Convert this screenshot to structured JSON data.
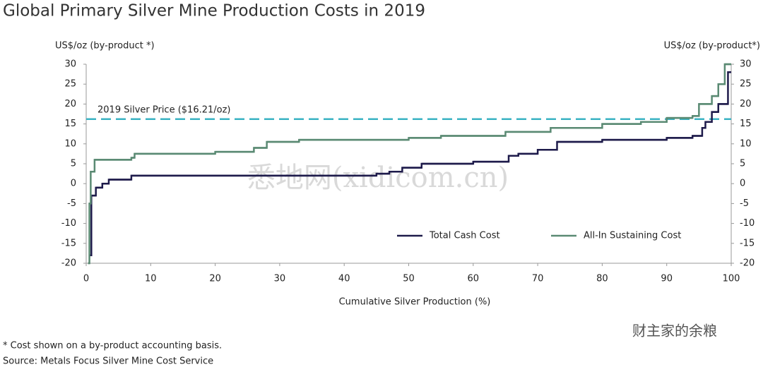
{
  "chart_data": {
    "type": "step",
    "title": "Global Primary Silver Mine Production Costs in 2019",
    "ylabel": "US$/oz (by-product *)",
    "y2label": "US$/oz (by-product*)",
    "xlabel": "Cumulative Silver Production (%)",
    "xlim": [
      0,
      100
    ],
    "xticks": [
      0,
      10,
      20,
      30,
      40,
      50,
      60,
      70,
      80,
      90,
      100
    ],
    "ylim": [
      -20,
      30
    ],
    "yticks": [
      30,
      25,
      20,
      15,
      10,
      5,
      0,
      -5,
      -10,
      -15,
      -20
    ],
    "y2lim": [
      -20,
      30
    ],
    "y2ticks": [
      30,
      25,
      20,
      15,
      10,
      5,
      0,
      -5,
      -10,
      -15,
      -20
    ],
    "legend": "lower right",
    "reference_line": {
      "value": 16.21,
      "label": "2019 Silver Price ($16.21/oz)",
      "color": "#3bb3c3"
    },
    "series": [
      {
        "name": "Total Cash Cost",
        "color": "#1e1b4b",
        "x": [
          0.6,
          0.8,
          1.5,
          2.5,
          3.5,
          7,
          40,
          45,
          47,
          49,
          52,
          60,
          65.5,
          67,
          70,
          73,
          80,
          90,
          94,
          95.5,
          96,
          97,
          98,
          99.5,
          100
        ],
        "values": [
          -18,
          -3,
          -1,
          0,
          1,
          2,
          2,
          2.5,
          3,
          4,
          5,
          5.5,
          7,
          7.5,
          8.5,
          10.5,
          11,
          11.5,
          12,
          14,
          15.5,
          18,
          20,
          28,
          28
        ]
      },
      {
        "name": "All-In Sustaining Cost",
        "color": "#5a8a73",
        "x": [
          0.3,
          0.5,
          0.7,
          1.3,
          7,
          7.5,
          20,
          26,
          28,
          33,
          50,
          55,
          65,
          72,
          80,
          86,
          90,
          94,
          95,
          97,
          98,
          99,
          100
        ],
        "values": [
          -20,
          -5,
          3,
          6,
          6.5,
          7.5,
          8,
          9,
          10.5,
          11,
          11.5,
          12,
          13,
          14,
          15,
          15.5,
          16.5,
          17,
          20,
          22,
          25,
          30,
          30
        ]
      }
    ],
    "footnotes": [
      "* Cost shown on a by-product accounting basis.",
      "Source: Metals Focus Silver Mine Cost Service"
    ],
    "watermarks": [
      "悉地网(xidicom.cn)",
      "财主家的余粮"
    ]
  }
}
